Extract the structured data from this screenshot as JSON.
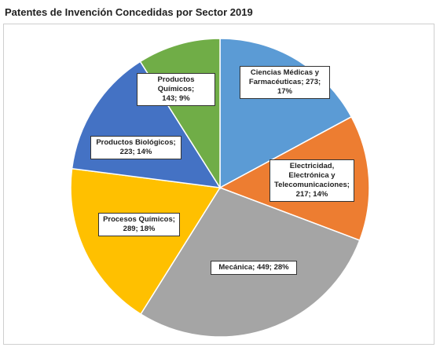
{
  "title": "Patentes de Invención Concedidas por Sector 2019",
  "chart_data": {
    "type": "pie",
    "title": "Patentes de Invención Concedidas por Sector 2019",
    "slices": [
      {
        "label": "Ciencias Médicas y Farmacéuticas",
        "value": 273,
        "percent": "17%",
        "color": "#5b9bd5",
        "data_label": "Ciencias Médicas y Farmacéuticas; 273; 17%"
      },
      {
        "label": "Electricidad, Electrónica y Telecomunicaciones",
        "value": 217,
        "percent": "14%",
        "color": "#ed7d31",
        "data_label": "Electricidad, Electrónica y Telecomunicaciones; 217; 14%"
      },
      {
        "label": "Mecánica",
        "value": 449,
        "percent": "28%",
        "color": "#a5a5a5",
        "data_label": "Mecánica; 449; 28%"
      },
      {
        "label": "Procesos Químicos",
        "value": 289,
        "percent": "18%",
        "color": "#ffc000",
        "data_label": "Procesos Químicos; 289; 18%"
      },
      {
        "label": "Productos Biológicos",
        "value": 223,
        "percent": "14%",
        "color": "#4472c4",
        "data_label": "Productos Biológicos; 223; 14%"
      },
      {
        "label": "Productos Químicos",
        "value": 143,
        "percent": "9%",
        "color": "#70ad47",
        "data_label": "Productos Químicos; 143; 9%"
      }
    ]
  }
}
